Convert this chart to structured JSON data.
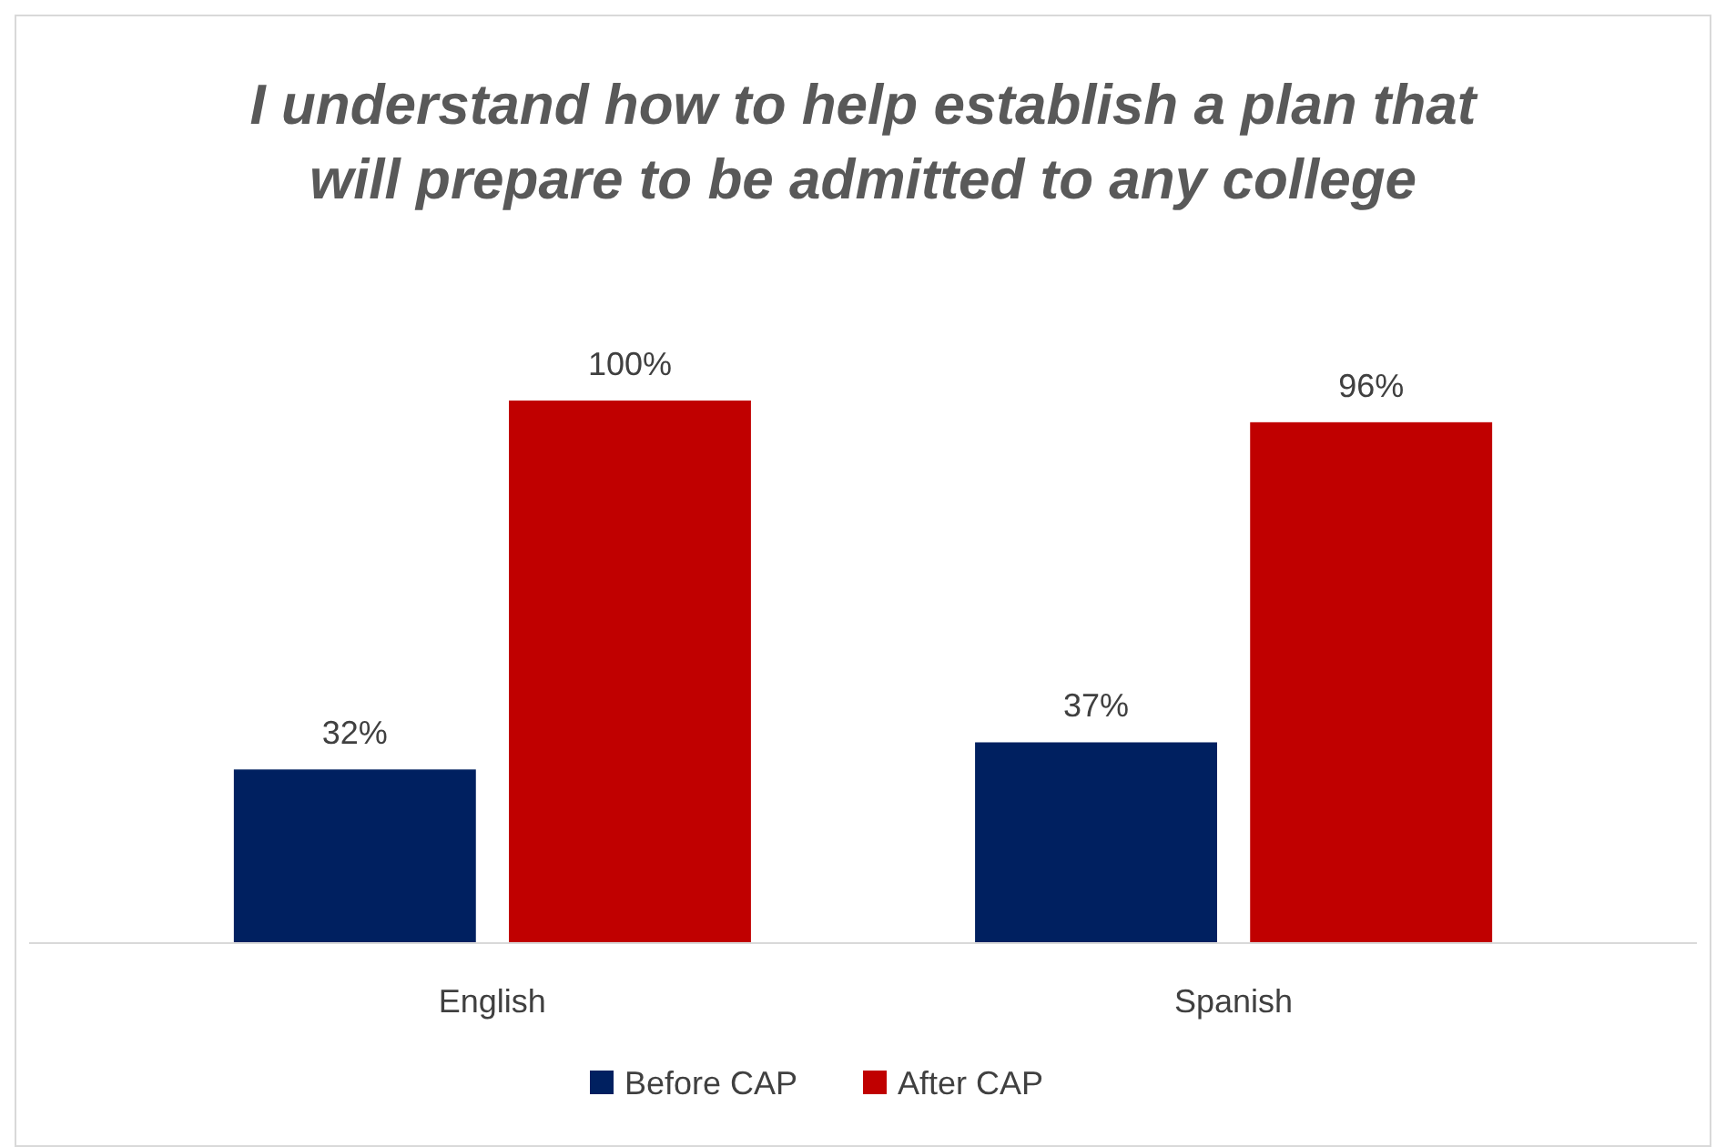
{
  "chart_data": {
    "type": "bar",
    "title": "I understand how to help establish a plan that will prepare to be admitted to any college",
    "categories": [
      "English",
      "Spanish"
    ],
    "series": [
      {
        "name": "Before CAP",
        "color": "#002060",
        "values": [
          32,
          37
        ],
        "value_labels": [
          "32%",
          "37%"
        ]
      },
      {
        "name": "After CAP",
        "color": "#c00000",
        "values": [
          100,
          96
        ],
        "value_labels": [
          "100%",
          "96%"
        ]
      }
    ],
    "legend": "bottom"
  }
}
